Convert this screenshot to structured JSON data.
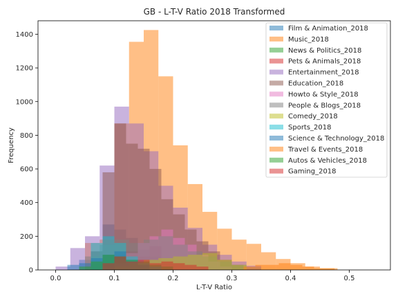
{
  "chart_data": {
    "type": "bar",
    "title": "GB - L-T-V Ratio 2018 Transformed",
    "xlabel": "L-T-V Ratio",
    "ylabel": "Frequency",
    "xlim": [
      -0.03,
      0.57
    ],
    "ylim": [
      0,
      1480
    ],
    "xticks": [
      0.0,
      0.1,
      0.2,
      0.3,
      0.4,
      0.5
    ],
    "xtick_labels": [
      "0.0",
      "0.1",
      "0.2",
      "0.3",
      "0.4",
      "0.5"
    ],
    "yticks": [
      0,
      200,
      400,
      600,
      800,
      1000,
      1200,
      1400
    ],
    "ytick_labels": [
      "0",
      "200",
      "400",
      "600",
      "800",
      "1000",
      "1200",
      "1400"
    ],
    "grid": false,
    "legend_position": "top-right",
    "series": [
      {
        "name": "Film & Animation_2018",
        "color": "#1f77b4",
        "bins": [
          [
            0.04,
            0.06,
            60
          ],
          [
            0.06,
            0.08,
            110
          ],
          [
            0.08,
            0.1,
            270
          ],
          [
            0.1,
            0.12,
            240
          ],
          [
            0.12,
            0.14,
            190
          ],
          [
            0.14,
            0.16,
            120
          ],
          [
            0.16,
            0.18,
            80
          ],
          [
            0.18,
            0.2,
            40
          ],
          [
            0.2,
            0.22,
            20
          ]
        ]
      },
      {
        "name": "Music_2018",
        "color": "#ff7f0e",
        "bins": [
          [
            0.05,
            0.075,
            160
          ],
          [
            0.075,
            0.1,
            180
          ],
          [
            0.1,
            0.125,
            870
          ],
          [
            0.125,
            0.15,
            1355
          ],
          [
            0.15,
            0.175,
            1425
          ],
          [
            0.175,
            0.2,
            1150
          ],
          [
            0.2,
            0.225,
            740
          ],
          [
            0.225,
            0.25,
            510
          ],
          [
            0.25,
            0.275,
            345
          ],
          [
            0.275,
            0.3,
            245
          ],
          [
            0.3,
            0.325,
            180
          ],
          [
            0.325,
            0.35,
            155
          ],
          [
            0.35,
            0.375,
            105
          ],
          [
            0.375,
            0.4,
            65
          ],
          [
            0.4,
            0.425,
            40
          ],
          [
            0.425,
            0.45,
            20
          ],
          [
            0.45,
            0.475,
            10
          ]
        ]
      },
      {
        "name": "News & Politics_2018",
        "color": "#2ca02c",
        "bins": [
          [
            0.06,
            0.08,
            40
          ],
          [
            0.08,
            0.1,
            60
          ],
          [
            0.1,
            0.12,
            90
          ],
          [
            0.12,
            0.14,
            70
          ],
          [
            0.14,
            0.16,
            40
          ],
          [
            0.16,
            0.18,
            20
          ]
        ]
      },
      {
        "name": "Pets & Animals_2018",
        "color": "#d62728",
        "bins": [
          [
            0.06,
            0.08,
            20
          ],
          [
            0.08,
            0.1,
            40
          ],
          [
            0.1,
            0.12,
            60
          ],
          [
            0.12,
            0.14,
            110
          ],
          [
            0.14,
            0.16,
            80
          ],
          [
            0.16,
            0.18,
            140
          ],
          [
            0.18,
            0.2,
            60
          ],
          [
            0.2,
            0.22,
            40
          ],
          [
            0.22,
            0.24,
            20
          ]
        ]
      },
      {
        "name": "Entertainment_2018",
        "color": "#9467bd",
        "bins": [
          [
            0.0,
            0.025,
            20
          ],
          [
            0.025,
            0.05,
            130
          ],
          [
            0.05,
            0.075,
            200
          ],
          [
            0.075,
            0.1,
            620
          ],
          [
            0.1,
            0.125,
            970
          ],
          [
            0.125,
            0.15,
            870
          ],
          [
            0.15,
            0.175,
            705
          ],
          [
            0.175,
            0.2,
            500
          ],
          [
            0.2,
            0.225,
            370
          ],
          [
            0.225,
            0.25,
            250
          ],
          [
            0.25,
            0.275,
            150
          ],
          [
            0.275,
            0.3,
            90
          ],
          [
            0.3,
            0.325,
            50
          ],
          [
            0.325,
            0.35,
            25
          ]
        ]
      },
      {
        "name": "Education_2018",
        "color": "#8c564b",
        "bins": [
          [
            0.06,
            0.08,
            110
          ],
          [
            0.08,
            0.1,
            580
          ],
          [
            0.1,
            0.12,
            870
          ],
          [
            0.12,
            0.14,
            750
          ],
          [
            0.14,
            0.16,
            720
          ],
          [
            0.16,
            0.18,
            600
          ],
          [
            0.18,
            0.2,
            420
          ],
          [
            0.2,
            0.22,
            330
          ],
          [
            0.22,
            0.24,
            240
          ],
          [
            0.24,
            0.26,
            170
          ],
          [
            0.26,
            0.28,
            110
          ],
          [
            0.28,
            0.3,
            60
          ],
          [
            0.3,
            0.32,
            30
          ]
        ]
      },
      {
        "name": "Howto & Style_2018",
        "color": "#e377c2",
        "bins": [
          [
            0.1,
            0.12,
            40
          ],
          [
            0.12,
            0.14,
            100
          ],
          [
            0.14,
            0.16,
            160
          ],
          [
            0.16,
            0.18,
            200
          ],
          [
            0.18,
            0.2,
            240
          ],
          [
            0.2,
            0.22,
            190
          ],
          [
            0.22,
            0.24,
            150
          ],
          [
            0.24,
            0.26,
            90
          ],
          [
            0.26,
            0.28,
            50
          ],
          [
            0.28,
            0.3,
            20
          ]
        ]
      },
      {
        "name": "People & Blogs_2018",
        "color": "#7f7f7f",
        "bins": [
          [
            0.05,
            0.075,
            80
          ],
          [
            0.075,
            0.1,
            150
          ],
          [
            0.1,
            0.125,
            180
          ],
          [
            0.125,
            0.15,
            160
          ],
          [
            0.15,
            0.175,
            180
          ],
          [
            0.175,
            0.2,
            200
          ],
          [
            0.2,
            0.225,
            150
          ],
          [
            0.225,
            0.25,
            110
          ],
          [
            0.25,
            0.275,
            80
          ],
          [
            0.275,
            0.3,
            50
          ],
          [
            0.3,
            0.325,
            30
          ],
          [
            0.325,
            0.35,
            15
          ]
        ]
      },
      {
        "name": "Comedy_2018",
        "color": "#bcbd22",
        "bins": [
          [
            0.1,
            0.125,
            20
          ],
          [
            0.125,
            0.15,
            40
          ],
          [
            0.15,
            0.175,
            60
          ],
          [
            0.175,
            0.2,
            70
          ],
          [
            0.2,
            0.225,
            80
          ],
          [
            0.225,
            0.25,
            90
          ],
          [
            0.25,
            0.275,
            100
          ],
          [
            0.275,
            0.3,
            60
          ],
          [
            0.3,
            0.325,
            30
          ]
        ]
      },
      {
        "name": "Sports_2018",
        "color": "#17becf",
        "bins": [
          [
            0.06,
            0.08,
            160
          ],
          [
            0.08,
            0.1,
            200
          ],
          [
            0.1,
            0.12,
            160
          ],
          [
            0.12,
            0.14,
            80
          ],
          [
            0.14,
            0.16,
            40
          ],
          [
            0.16,
            0.18,
            20
          ]
        ]
      },
      {
        "name": "Science & Technology_2018",
        "color": "#1f77b4",
        "bins": [
          [
            0.02,
            0.04,
            30
          ],
          [
            0.04,
            0.06,
            40
          ],
          [
            0.06,
            0.08,
            70
          ],
          [
            0.08,
            0.1,
            90
          ],
          [
            0.1,
            0.12,
            110
          ],
          [
            0.12,
            0.14,
            60
          ],
          [
            0.14,
            0.16,
            30
          ]
        ]
      },
      {
        "name": "Travel & Events_2018",
        "color": "#ff7f0e",
        "bins": [
          [
            0.32,
            0.34,
            20
          ],
          [
            0.34,
            0.36,
            30
          ],
          [
            0.36,
            0.38,
            30
          ],
          [
            0.38,
            0.4,
            40
          ],
          [
            0.4,
            0.42,
            30
          ],
          [
            0.42,
            0.44,
            20
          ],
          [
            0.44,
            0.46,
            10
          ],
          [
            0.46,
            0.48,
            10
          ]
        ]
      },
      {
        "name": "Autos & Vehicles_2018",
        "color": "#2ca02c",
        "bins": [
          [
            0.04,
            0.06,
            20
          ],
          [
            0.06,
            0.08,
            50
          ],
          [
            0.08,
            0.1,
            90
          ],
          [
            0.1,
            0.12,
            80
          ],
          [
            0.12,
            0.14,
            60
          ],
          [
            0.14,
            0.16,
            50
          ],
          [
            0.16,
            0.18,
            30
          ],
          [
            0.18,
            0.2,
            20
          ]
        ]
      },
      {
        "name": "Gaming_2018",
        "color": "#d62728",
        "bins": [
          [
            0.08,
            0.1,
            40
          ],
          [
            0.1,
            0.12,
            80
          ],
          [
            0.12,
            0.14,
            50
          ],
          [
            0.14,
            0.16,
            60
          ],
          [
            0.16,
            0.18,
            40
          ],
          [
            0.18,
            0.2,
            50
          ],
          [
            0.2,
            0.22,
            40
          ],
          [
            0.22,
            0.24,
            30
          ],
          [
            0.24,
            0.26,
            20
          ]
        ]
      }
    ]
  }
}
